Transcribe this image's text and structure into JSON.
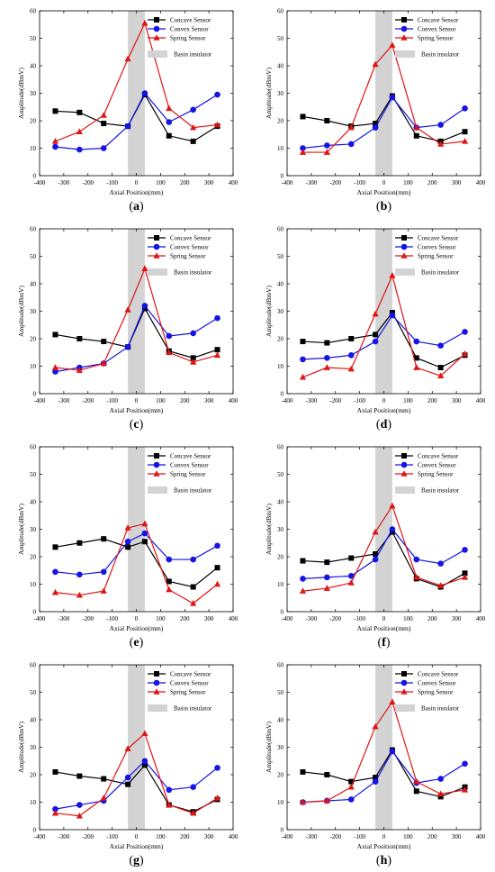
{
  "figure": {
    "colors": {
      "concave": "#000000",
      "convex": "#1414e6",
      "spring": "#e01414",
      "insulator": "#d3d3d3"
    },
    "legend": {
      "concave": "Concave Sensor",
      "convex": "Convex Sensor",
      "spring": "Spring Sensor",
      "insulator": "Basin insulator"
    }
  },
  "chart_data": [
    {
      "type": "line",
      "panel_label": "a",
      "xlabel": "Axial Position(mm)",
      "ylabel": "Amplitude(dBmV)",
      "xlim": [
        -400,
        400
      ],
      "ylim": [
        0,
        60
      ],
      "xticks": [
        -400,
        -300,
        -200,
        -100,
        0,
        100,
        200,
        300,
        400
      ],
      "yticks": [
        0,
        10,
        20,
        30,
        40,
        50,
        60
      ],
      "insulator_range": [
        -35,
        35
      ],
      "x": [
        -335,
        -235,
        -135,
        -35,
        35,
        135,
        235,
        335
      ],
      "series": [
        {
          "name": "Concave Sensor",
          "marker": "square",
          "values": [
            23.5,
            23,
            19,
            18,
            29.5,
            14.5,
            12.5,
            18
          ]
        },
        {
          "name": "Convex Sensor",
          "marker": "circle",
          "values": [
            10.5,
            9.5,
            10,
            18,
            30,
            19.5,
            24,
            29.5
          ]
        },
        {
          "name": "Spring Sensor",
          "marker": "triangle",
          "values": [
            12.5,
            16,
            22,
            42.5,
            55.5,
            24.5,
            17.5,
            18.5
          ]
        }
      ]
    },
    {
      "type": "line",
      "panel_label": "b",
      "xlabel": "Axial Position(mm)",
      "ylabel": "Amplitude(dBmV)",
      "xlim": [
        -400,
        400
      ],
      "ylim": [
        0,
        60
      ],
      "xticks": [
        -400,
        -300,
        -200,
        -100,
        0,
        100,
        200,
        300,
        400
      ],
      "yticks": [
        0,
        10,
        20,
        30,
        40,
        50,
        60
      ],
      "insulator_range": [
        -35,
        35
      ],
      "x": [
        -335,
        -235,
        -135,
        -35,
        35,
        135,
        235,
        335
      ],
      "series": [
        {
          "name": "Concave Sensor",
          "marker": "square",
          "values": [
            21.5,
            20,
            18,
            19,
            29,
            14.5,
            12.5,
            16
          ]
        },
        {
          "name": "Convex Sensor",
          "marker": "circle",
          "values": [
            10,
            11,
            11.5,
            17.5,
            28.5,
            17.5,
            18.5,
            24.5
          ]
        },
        {
          "name": "Spring Sensor",
          "marker": "triangle",
          "values": [
            8.5,
            8.5,
            17.5,
            40.5,
            47.5,
            17.5,
            11.5,
            12.5
          ]
        }
      ]
    },
    {
      "type": "line",
      "panel_label": "c",
      "xlabel": "Axial Position(mm)",
      "ylabel": "Amplitude(dBmV)",
      "xlim": [
        -400,
        400
      ],
      "ylim": [
        0,
        60
      ],
      "xticks": [
        -400,
        -300,
        -200,
        -100,
        0,
        100,
        200,
        300,
        400
      ],
      "yticks": [
        0,
        10,
        20,
        30,
        40,
        50,
        60
      ],
      "insulator_range": [
        -35,
        35
      ],
      "x": [
        -335,
        -235,
        -135,
        -35,
        35,
        135,
        235,
        335
      ],
      "series": [
        {
          "name": "Concave Sensor",
          "marker": "square",
          "values": [
            21.5,
            20,
            19,
            17,
            31,
            15.5,
            13,
            16
          ]
        },
        {
          "name": "Convex Sensor",
          "marker": "circle",
          "values": [
            8,
            9.5,
            11,
            17,
            32,
            21,
            22,
            27.5
          ]
        },
        {
          "name": "Spring Sensor",
          "marker": "triangle",
          "values": [
            9.5,
            8.5,
            11,
            30.5,
            45.5,
            15,
            11.5,
            14
          ]
        }
      ]
    },
    {
      "type": "line",
      "panel_label": "d",
      "xlabel": "Axial Position(mm)",
      "ylabel": "Amplitude(dBmV)",
      "xlim": [
        -400,
        400
      ],
      "ylim": [
        0,
        60
      ],
      "xticks": [
        -400,
        -300,
        -200,
        -100,
        0,
        100,
        200,
        300,
        400
      ],
      "yticks": [
        0,
        10,
        20,
        30,
        40,
        50,
        60
      ],
      "insulator_range": [
        -35,
        35
      ],
      "x": [
        -335,
        -235,
        -135,
        -35,
        35,
        135,
        235,
        335
      ],
      "series": [
        {
          "name": "Concave Sensor",
          "marker": "square",
          "values": [
            19,
            18.5,
            20,
            21.5,
            29.5,
            13,
            9.5,
            14
          ]
        },
        {
          "name": "Convex Sensor",
          "marker": "circle",
          "values": [
            12.5,
            13,
            14,
            19,
            28.5,
            19,
            17.5,
            22.5
          ]
        },
        {
          "name": "Spring Sensor",
          "marker": "triangle",
          "values": [
            6,
            9.5,
            9,
            29,
            43,
            9.5,
            6.5,
            14.5
          ]
        }
      ]
    },
    {
      "type": "line",
      "panel_label": "e",
      "xlabel": "Axial Position(mm)",
      "ylabel": "Amplitude(dBmV)",
      "xlim": [
        -400,
        400
      ],
      "ylim": [
        0,
        60
      ],
      "xticks": [
        -400,
        -300,
        -200,
        -100,
        0,
        100,
        200,
        300,
        400
      ],
      "yticks": [
        0,
        10,
        20,
        30,
        40,
        50,
        60
      ],
      "insulator_range": [
        -35,
        35
      ],
      "x": [
        -335,
        -235,
        -135,
        -35,
        35,
        135,
        235,
        335
      ],
      "series": [
        {
          "name": "Concave Sensor",
          "marker": "square",
          "values": [
            23.5,
            25,
            26.5,
            23.5,
            25.5,
            11,
            9,
            16
          ]
        },
        {
          "name": "Convex Sensor",
          "marker": "circle",
          "values": [
            14.5,
            13.5,
            14.5,
            25.5,
            28.5,
            19,
            19,
            24
          ]
        },
        {
          "name": "Spring Sensor",
          "marker": "triangle",
          "values": [
            7,
            6,
            7.5,
            30.5,
            32,
            8,
            3,
            10
          ]
        }
      ]
    },
    {
      "type": "line",
      "panel_label": "f",
      "xlabel": "Axial Position(mm)",
      "ylabel": "Amplitude(dBmV)",
      "xlim": [
        -400,
        400
      ],
      "ylim": [
        0,
        60
      ],
      "xticks": [
        -400,
        -300,
        -200,
        -100,
        0,
        100,
        200,
        300,
        400
      ],
      "yticks": [
        0,
        10,
        20,
        30,
        40,
        50,
        60
      ],
      "insulator_range": [
        -35,
        35
      ],
      "x": [
        -335,
        -235,
        -135,
        -35,
        35,
        135,
        235,
        335
      ],
      "series": [
        {
          "name": "Concave Sensor",
          "marker": "square",
          "values": [
            18.5,
            18,
            19.5,
            21,
            29,
            12,
            9,
            14
          ]
        },
        {
          "name": "Convex Sensor",
          "marker": "circle",
          "values": [
            12,
            12.5,
            13,
            19,
            30,
            19,
            17.5,
            22.5
          ]
        },
        {
          "name": "Spring Sensor",
          "marker": "triangle",
          "values": [
            7.5,
            8.5,
            10.5,
            29,
            38.5,
            12.5,
            9.5,
            12.5
          ]
        }
      ]
    },
    {
      "type": "line",
      "panel_label": "g",
      "xlabel": "Axial Position(mm)",
      "ylabel": "Amplitude(dBmV)",
      "xlim": [
        -400,
        400
      ],
      "ylim": [
        0,
        60
      ],
      "xticks": [
        -400,
        -300,
        -200,
        -100,
        0,
        100,
        200,
        300,
        400
      ],
      "yticks": [
        0,
        10,
        20,
        30,
        40,
        50,
        60
      ],
      "insulator_range": [
        -35,
        35
      ],
      "x": [
        -335,
        -235,
        -135,
        -35,
        35,
        135,
        235,
        335
      ],
      "series": [
        {
          "name": "Concave Sensor",
          "marker": "square",
          "values": [
            21,
            19.5,
            18.5,
            16.5,
            23.5,
            9,
            6.5,
            11
          ]
        },
        {
          "name": "Convex Sensor",
          "marker": "circle",
          "values": [
            7.5,
            9,
            10.5,
            19,
            25,
            14.5,
            15.5,
            22.5
          ]
        },
        {
          "name": "Spring Sensor",
          "marker": "triangle",
          "values": [
            6,
            5,
            11.5,
            29.5,
            35,
            9,
            6,
            11.5
          ]
        }
      ]
    },
    {
      "type": "line",
      "panel_label": "h",
      "xlabel": "Axial Position(mm)",
      "ylabel": "Amplitude(dBmV)",
      "xlim": [
        -400,
        400
      ],
      "ylim": [
        0,
        60
      ],
      "xticks": [
        -400,
        -300,
        -200,
        -100,
        0,
        100,
        200,
        300,
        400
      ],
      "yticks": [
        0,
        10,
        20,
        30,
        40,
        50,
        60
      ],
      "insulator_range": [
        -35,
        35
      ],
      "x": [
        -335,
        -235,
        -135,
        -35,
        35,
        135,
        235,
        335
      ],
      "series": [
        {
          "name": "Concave Sensor",
          "marker": "square",
          "values": [
            21,
            20,
            17.5,
            19,
            29,
            14,
            12,
            15.5
          ]
        },
        {
          "name": "Convex Sensor",
          "marker": "circle",
          "values": [
            10,
            10.5,
            11,
            17.5,
            28.5,
            17,
            18.5,
            24
          ]
        },
        {
          "name": "Spring Sensor",
          "marker": "triangle",
          "values": [
            10,
            10.5,
            15.5,
            37.5,
            46.5,
            17.5,
            13,
            14.5
          ]
        }
      ]
    }
  ]
}
